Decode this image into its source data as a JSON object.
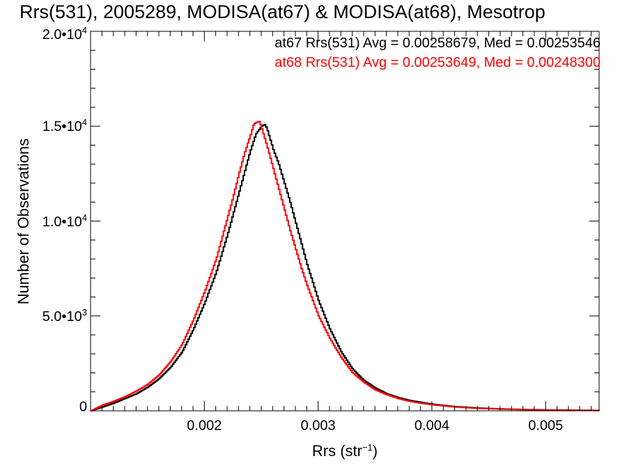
{
  "chart_data": {
    "type": "line",
    "title": "Rrs(531), 2005289, MODISA(at67) & MODISA(at68), Mesotrop",
    "xlabel_base": "Rrs (str",
    "xlabel_sup": "−1",
    "xlabel_close": ")",
    "ylabel": "Number of Observations",
    "xlim": [
      0.001,
      0.00547
    ],
    "ylim": [
      0,
      20000
    ],
    "xticks": [
      {
        "value": 0.002,
        "label": "0.002"
      },
      {
        "value": 0.003,
        "label": "0.003"
      },
      {
        "value": 0.004,
        "label": "0.004"
      },
      {
        "value": 0.005,
        "label": "0.005"
      }
    ],
    "yticks": [
      {
        "value": 0,
        "base": "0",
        "exp": ""
      },
      {
        "value": 5000,
        "base": "5.0•10",
        "exp": "3"
      },
      {
        "value": 10000,
        "base": "1.0•10",
        "exp": "4"
      },
      {
        "value": 15000,
        "base": "1.5•10",
        "exp": "4"
      },
      {
        "value": 20000,
        "base": "2.0•10",
        "exp": "4"
      }
    ],
    "annotations": [
      {
        "text": "at67 Rrs(531) Avg = 0.00258679, Med = 0.00253546",
        "color": "#000000"
      },
      {
        "text": "at68 Rrs(531) Avg = 0.00253649, Med = 0.00248300",
        "color": "#ff0000"
      }
    ],
    "series": [
      {
        "name": "at67",
        "color": "#000000",
        "x": [
          0.001,
          0.0011,
          0.0012,
          0.0013,
          0.0014,
          0.0015,
          0.0016,
          0.0017,
          0.0018,
          0.0019,
          0.002,
          0.0021,
          0.00215,
          0.0022,
          0.00225,
          0.0023,
          0.00235,
          0.0024,
          0.00245,
          0.0025,
          0.00253,
          0.00255,
          0.00258,
          0.0026,
          0.00265,
          0.0027,
          0.00275,
          0.0028,
          0.00285,
          0.0029,
          0.003,
          0.0031,
          0.0032,
          0.0033,
          0.0034,
          0.0035,
          0.0036,
          0.0037,
          0.0038,
          0.0039,
          0.004,
          0.0042,
          0.0044,
          0.0046,
          0.0048,
          0.005,
          0.00547
        ],
        "y": [
          0,
          200,
          400,
          650,
          900,
          1250,
          1700,
          2300,
          3100,
          4300,
          5700,
          7300,
          8300,
          9300,
          10400,
          11500,
          12600,
          13700,
          14600,
          15000,
          15100,
          14800,
          14200,
          13800,
          13000,
          12000,
          11000,
          9900,
          8800,
          7700,
          5800,
          4300,
          3100,
          2200,
          1600,
          1200,
          900,
          700,
          550,
          450,
          350,
          220,
          150,
          100,
          70,
          50,
          20
        ]
      },
      {
        "name": "at68",
        "color": "#ff0000",
        "x": [
          0.001,
          0.0011,
          0.0012,
          0.0013,
          0.0014,
          0.0015,
          0.0016,
          0.0017,
          0.0018,
          0.0019,
          0.002,
          0.0021,
          0.00215,
          0.0022,
          0.00225,
          0.0023,
          0.00235,
          0.0024,
          0.00243,
          0.00245,
          0.00248,
          0.0025,
          0.00255,
          0.0026,
          0.00265,
          0.0027,
          0.00275,
          0.0028,
          0.00285,
          0.0029,
          0.003,
          0.0031,
          0.0032,
          0.0033,
          0.0034,
          0.0035,
          0.0036,
          0.0037,
          0.0038,
          0.0039,
          0.004,
          0.0042,
          0.0044,
          0.0046,
          0.0048,
          0.005,
          0.00547
        ],
        "y": [
          0,
          300,
          500,
          750,
          1050,
          1400,
          1900,
          2600,
          3500,
          4800,
          6300,
          8000,
          9100,
          10200,
          11300,
          12500,
          13600,
          14500,
          15100,
          15200,
          15250,
          14900,
          13900,
          12800,
          11700,
          10600,
          9500,
          8500,
          7500,
          6600,
          5000,
          3800,
          2800,
          2000,
          1500,
          1100,
          850,
          650,
          500,
          400,
          320,
          200,
          130,
          90,
          60,
          40,
          15
        ]
      }
    ]
  }
}
